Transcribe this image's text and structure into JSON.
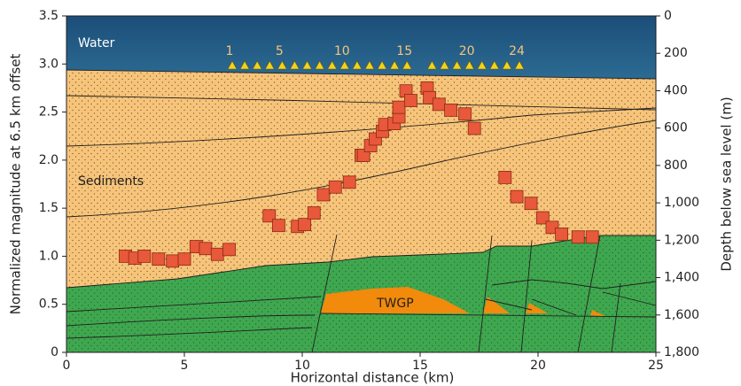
{
  "chart_data": {
    "type": "scatter",
    "xlabel": "Horizontal distance (km)",
    "ylabel": "Normalized magnitude at 6.5 km offset",
    "y2label": "Depth below sea level (m)",
    "xlim": [
      0,
      25
    ],
    "xticks": [
      0,
      5,
      10,
      15,
      20,
      25
    ],
    "ylim": [
      0,
      3.5
    ],
    "yticks": [
      0,
      0.5,
      {
        "value": 1,
        "label": "1.0"
      },
      1.5,
      {
        "value": 2,
        "label": "2.0"
      },
      2.5,
      {
        "value": 3,
        "label": "3.0"
      },
      3.5
    ],
    "y2lim": [
      0,
      1800
    ],
    "y2_inverted": true,
    "y2ticks": [
      0,
      200,
      400,
      600,
      800,
      {
        "value": 1000,
        "label": "1,000"
      },
      {
        "value": 1200,
        "label": "1,200"
      },
      {
        "value": 1400,
        "label": "1,400"
      },
      {
        "value": 1600,
        "label": "1,600"
      },
      {
        "value": 1800,
        "label": "1,800"
      }
    ],
    "annotations": [
      "Water",
      "Sediments",
      "TWGP"
    ],
    "receiver_labels": [
      "1",
      "5",
      "10",
      "15",
      "20",
      "24"
    ],
    "series": [
      {
        "color": "#e8583a",
        "x": [
          2.5,
          2.9,
          3.3,
          3.9,
          4.5,
          5.0,
          5.5,
          5.9,
          6.4,
          6.9,
          8.6,
          9.0,
          9.8,
          10.1,
          10.5,
          10.9,
          11.4,
          12.0,
          12.5,
          12.6,
          12.9,
          13.1,
          13.4,
          13.5,
          13.9,
          14.1,
          14.1,
          14.4,
          14.6,
          15.3,
          15.4,
          15.8,
          16.3,
          16.9,
          17.3,
          18.6,
          19.1,
          19.7,
          20.2,
          20.6,
          21.0,
          21.7,
          22.3
        ],
        "values": [
          1.0,
          0.98,
          1.0,
          0.97,
          0.95,
          0.97,
          1.1,
          1.08,
          1.02,
          1.07,
          1.42,
          1.32,
          1.31,
          1.33,
          1.45,
          1.64,
          1.72,
          1.77,
          2.05,
          2.05,
          2.15,
          2.22,
          2.3,
          2.37,
          2.38,
          2.45,
          2.55,
          2.72,
          2.62,
          2.75,
          2.65,
          2.58,
          2.52,
          2.48,
          2.33,
          1.82,
          1.62,
          1.55,
          1.4,
          1.3,
          1.23,
          1.2,
          1.2
        ]
      }
    ]
  }
}
